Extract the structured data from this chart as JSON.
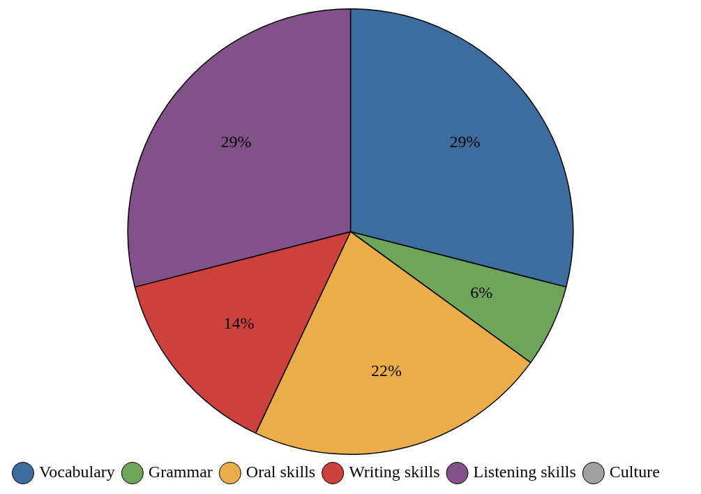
{
  "chart_data": {
    "type": "pie",
    "categories": [
      "Vocabulary",
      "Grammar",
      "Oral skills",
      "Writing skills",
      "Listening skills",
      "Culture"
    ],
    "values": [
      29,
      6,
      22,
      14,
      29,
      0
    ],
    "colors": [
      "#3d6d9e",
      "#6ea55a",
      "#ebad4a",
      "#cc413c",
      "#83518a",
      "#a0a0a0"
    ],
    "value_labels": [
      "29%",
      "6%",
      "22%",
      "14%",
      "29%",
      null
    ],
    "legend": "bottom"
  }
}
